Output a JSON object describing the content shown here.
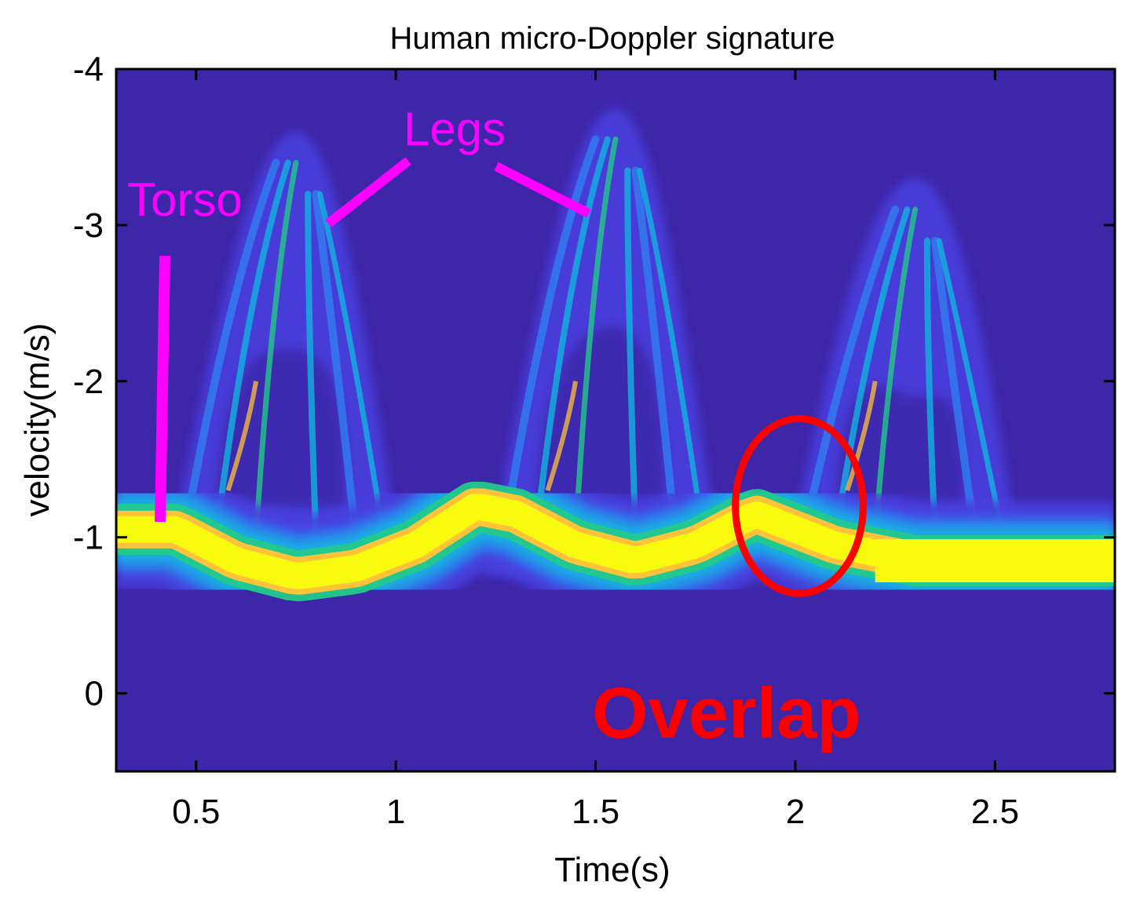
{
  "chart_data": {
    "type": "heatmap",
    "title": "Human micro-Doppler signature",
    "xlabel": "Time(s)",
    "ylabel": "velocity(m/s)",
    "xlim": [
      0.3,
      2.8
    ],
    "ylim": [
      -4,
      0.5
    ],
    "y_axis_direction": "increasing downward",
    "x_ticks": [
      {
        "value": 0.5,
        "label": "0.5"
      },
      {
        "value": 1,
        "label": "1"
      },
      {
        "value": 1.5,
        "label": "1.5"
      },
      {
        "value": 2,
        "label": "2"
      },
      {
        "value": 2.5,
        "label": "2.5"
      }
    ],
    "y_ticks": [
      {
        "value": -4,
        "label": "-4"
      },
      {
        "value": -3,
        "label": "-3"
      },
      {
        "value": -2,
        "label": "-2"
      },
      {
        "value": -1,
        "label": "-1"
      },
      {
        "value": 0,
        "label": "0"
      }
    ],
    "colormap": [
      "#3e26a8",
      "#4a3fe0",
      "#2f7ef0",
      "#12b3e0",
      "#22c98a",
      "#a8d13a",
      "#ffc23a",
      "#f9fb0e"
    ],
    "background_color": "#3e26a8",
    "torso_trace": [
      {
        "t": 0.3,
        "v": -1.05
      },
      {
        "t": 0.45,
        "v": -1.05
      },
      {
        "t": 0.6,
        "v": -0.85
      },
      {
        "t": 0.75,
        "v": -0.75
      },
      {
        "t": 0.9,
        "v": -0.8
      },
      {
        "t": 1.05,
        "v": -0.95
      },
      {
        "t": 1.2,
        "v": -1.2
      },
      {
        "t": 1.3,
        "v": -1.15
      },
      {
        "t": 1.45,
        "v": -0.95
      },
      {
        "t": 1.6,
        "v": -0.85
      },
      {
        "t": 1.75,
        "v": -0.95
      },
      {
        "t": 1.9,
        "v": -1.15
      },
      {
        "t": 2.0,
        "v": -1.05
      },
      {
        "t": 2.1,
        "v": -0.95
      },
      {
        "t": 2.3,
        "v": -0.85
      },
      {
        "t": 2.5,
        "v": -0.85
      },
      {
        "t": 2.65,
        "v": -0.85
      },
      {
        "t": 2.8,
        "v": -0.85
      }
    ],
    "leg_peaks": [
      {
        "t": 0.75,
        "v": -3.6
      },
      {
        "t": 1.55,
        "v": -3.75
      },
      {
        "t": 2.3,
        "v": -3.3
      }
    ],
    "annotations": [
      {
        "text": "Torso",
        "color": "#ff00ff",
        "at": {
          "t": 0.41,
          "v": -1.1
        }
      },
      {
        "text": "Legs",
        "color": "#ff00ff",
        "targets": [
          {
            "t": 0.83,
            "v": -3.0
          },
          {
            "t": 1.49,
            "v": -3.07
          }
        ]
      },
      {
        "text": "Overlap",
        "color": "#ff0000",
        "ellipse_center": {
          "t": 2.01,
          "v": -1.2
        },
        "ellipse_radius": {
          "t": 0.16,
          "v": 0.56
        }
      }
    ]
  }
}
